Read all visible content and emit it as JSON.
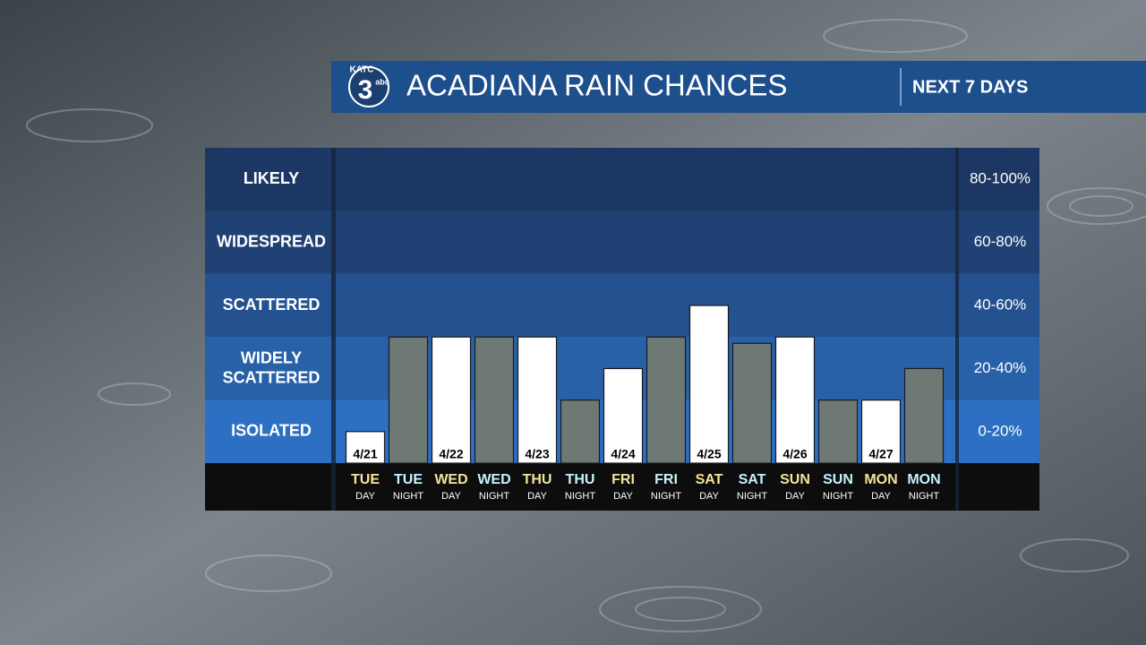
{
  "chart_data": {
    "type": "bar",
    "logo": {
      "station": "KATC",
      "channel": "3",
      "network": "abc"
    },
    "title": "ACADIANA RAIN CHANCES",
    "subtitle": "NEXT 7 DAYS",
    "categories": [
      "TUE",
      "TUE",
      "WED",
      "WED",
      "THU",
      "THU",
      "FRI",
      "FRI",
      "SAT",
      "SAT",
      "SUN",
      "SUN",
      "MON",
      "MON"
    ],
    "periods": [
      "DAY",
      "NIGHT",
      "DAY",
      "NIGHT",
      "DAY",
      "NIGHT",
      "DAY",
      "NIGHT",
      "DAY",
      "NIGHT",
      "DAY",
      "NIGHT",
      "DAY",
      "NIGHT"
    ],
    "dates": [
      "4/21",
      null,
      "4/22",
      null,
      "4/23",
      null,
      "4/24",
      null,
      "4/25",
      null,
      "4/26",
      null,
      "4/27",
      null
    ],
    "values": [
      10,
      40,
      40,
      40,
      40,
      20,
      30,
      40,
      50,
      38,
      40,
      20,
      20,
      30
    ],
    "day_color": "#ffffff",
    "night_color": "#6e7975",
    "ylim": [
      0,
      100
    ],
    "bands": [
      {
        "label": "LIKELY",
        "range": "80-100%",
        "from": 80,
        "to": 100,
        "color": "#1c3764"
      },
      {
        "label": "WIDESPREAD",
        "range": "60-80%",
        "from": 60,
        "to": 80,
        "color": "#1f4173"
      },
      {
        "label": "SCATTERED",
        "range": "40-60%",
        "from": 40,
        "to": 60,
        "color": "#245190"
      },
      {
        "label": "WIDELY SCATTERED",
        "range": "20-40%",
        "from": 20,
        "to": 40,
        "color": "#2961a9"
      },
      {
        "label": "ISOLATED",
        "range": "0-20%",
        "from": 0,
        "to": 20,
        "color": "#2d6fc2"
      }
    ]
  }
}
